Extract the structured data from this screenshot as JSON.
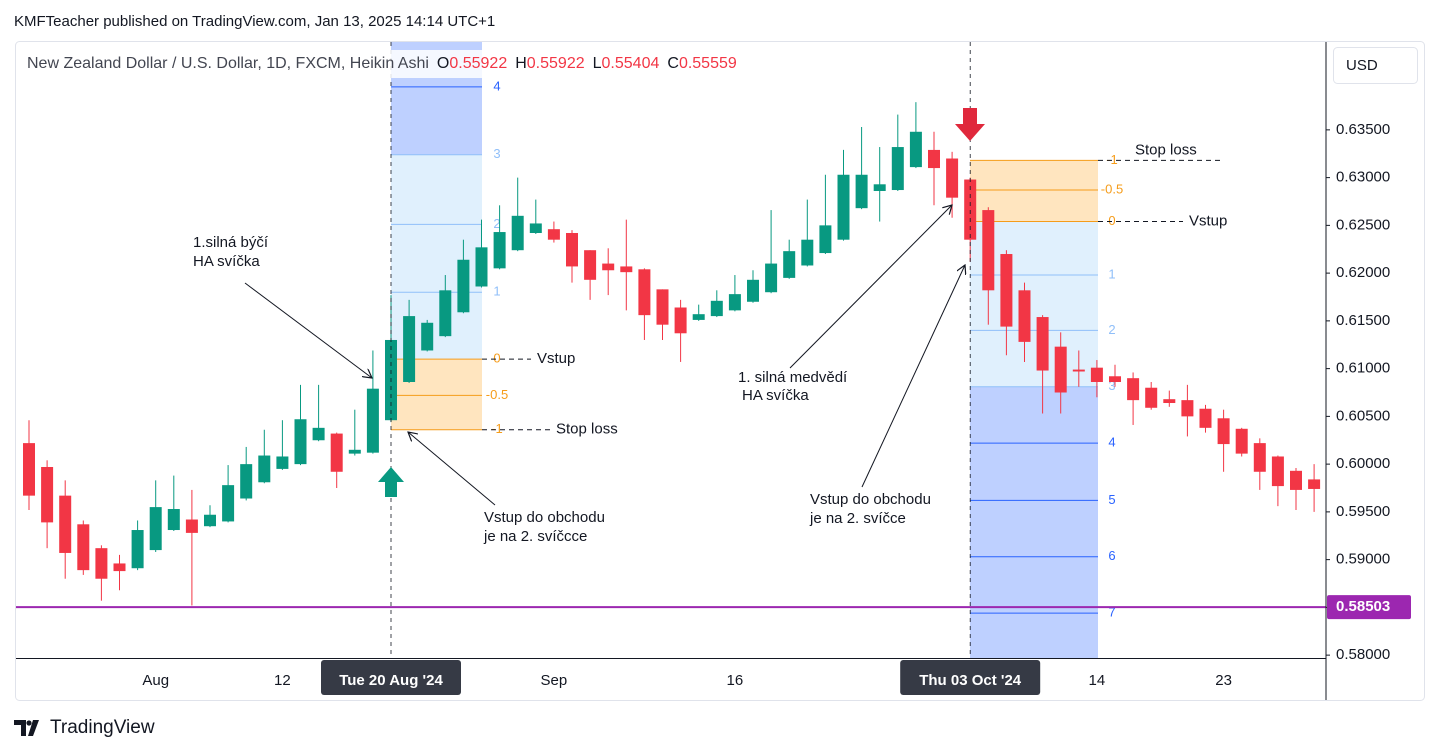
{
  "header": {
    "publisher": "KMFTeacher published on TradingView.com, Jan 13, 2025 14:14 UTC+1"
  },
  "chart_data": {
    "type": "candlestick",
    "title": "New Zealand Dollar / U.S. Dollar, 1D, FXCM, Heikin Ashi",
    "ohlc_legend": [
      {
        "label": "O",
        "value": 0.55922
      },
      {
        "label": "H",
        "value": 0.55922
      },
      {
        "label": "L",
        "value": 0.55404
      },
      {
        "label": "C",
        "value": 0.55559
      }
    ],
    "currency": "USD",
    "categories": [
      null,
      null,
      null,
      null,
      null,
      null,
      null,
      "Aug",
      null,
      null,
      null,
      null,
      null,
      null,
      "12",
      null,
      null,
      null,
      null,
      null,
      "Tue 20 Aug '24",
      null,
      null,
      null,
      null,
      null,
      null,
      null,
      null,
      "Sep",
      null,
      null,
      null,
      null,
      null,
      null,
      null,
      null,
      null,
      "16",
      null,
      null,
      null,
      null,
      null,
      null,
      null,
      null,
      null,
      null,
      null,
      null,
      "Thu 03 Oct '24",
      null,
      null,
      null,
      null,
      null,
      null,
      "14",
      null,
      null,
      null,
      null,
      null,
      null,
      "23",
      null,
      null,
      null,
      null,
      null
    ],
    "open": [
      0.6022,
      0.5997,
      0.5967,
      0.5937,
      0.5912,
      0.5896,
      0.5891,
      0.591,
      0.5931,
      0.5942,
      0.5935,
      0.594,
      0.5964,
      0.5981,
      0.5995,
      0.6,
      0.6025,
      0.6032,
      0.6011,
      0.6012,
      0.6046,
      0.6086,
      0.6119,
      0.6134,
      0.6159,
      0.6186,
      0.6205,
      0.6224,
      0.6242,
      0.6246,
      0.6242,
      0.6224,
      0.621,
      0.6207,
      0.6204,
      0.6183,
      0.6164,
      0.6151,
      0.6155,
      0.6161,
      0.617,
      0.618,
      0.6195,
      0.6208,
      0.6221,
      0.6235,
      0.6268,
      0.6286,
      0.6287,
      0.6311,
      0.6329,
      0.632,
      0.6298,
      0.6266,
      0.622,
      0.6182,
      0.6154,
      0.6123,
      0.6099,
      0.6101,
      0.6092,
      0.609,
      0.608,
      0.6068,
      0.6067,
      0.6058,
      0.6048,
      0.6037,
      0.6022,
      0.6008,
      0.5993,
      0.5984
    ],
    "high": [
      0.6046,
      0.6004,
      0.5983,
      0.5941,
      0.5915,
      0.5905,
      0.5941,
      0.5983,
      0.5988,
      0.5973,
      0.5957,
      0.5999,
      0.6018,
      0.6036,
      0.6046,
      0.6083,
      0.6083,
      0.6033,
      0.6057,
      0.6119,
      0.6177,
      0.6172,
      0.6151,
      0.6198,
      0.6235,
      0.6256,
      0.6271,
      0.63,
      0.6277,
      0.6254,
      0.6245,
      0.6224,
      0.6226,
      0.6256,
      0.6205,
      0.6183,
      0.6172,
      0.6167,
      0.6182,
      0.6198,
      0.6203,
      0.6266,
      0.6235,
      0.6277,
      0.6303,
      0.6329,
      0.6353,
      0.6332,
      0.6366,
      0.6379,
      0.6348,
      0.6327,
      0.63,
      0.6269,
      0.6224,
      0.619,
      0.6156,
      0.6138,
      0.6119,
      0.6109,
      0.6104,
      0.6096,
      0.6086,
      0.6077,
      0.6083,
      0.6062,
      0.6057,
      0.6038,
      0.6027,
      0.6009,
      0.5996,
      0.6
    ],
    "low": [
      0.5952,
      0.5912,
      0.588,
      0.5884,
      0.5857,
      0.5868,
      0.5889,
      0.5908,
      0.593,
      0.5852,
      0.5934,
      0.5939,
      0.5962,
      0.598,
      0.5994,
      0.5999,
      0.6024,
      0.5975,
      0.6009,
      0.6011,
      0.6044,
      0.6085,
      0.6118,
      0.6133,
      0.6158,
      0.6185,
      0.6204,
      0.6223,
      0.6241,
      0.6232,
      0.619,
      0.6172,
      0.6177,
      0.6161,
      0.613,
      0.613,
      0.6107,
      0.615,
      0.6154,
      0.616,
      0.6169,
      0.6179,
      0.6194,
      0.6207,
      0.622,
      0.6234,
      0.6267,
      0.6254,
      0.6286,
      0.631,
      0.6271,
      0.6258,
      0.6212,
      0.6146,
      0.6114,
      0.6107,
      0.6053,
      0.6053,
      0.6081,
      0.607,
      0.6081,
      0.6041,
      0.6057,
      0.606,
      0.6029,
      0.6033,
      0.5992,
      0.6008,
      0.5973,
      0.5956,
      0.5952,
      0.595
    ],
    "close": [
      0.5967,
      0.5939,
      0.5907,
      0.5889,
      0.588,
      0.5888,
      0.5931,
      0.5955,
      0.5953,
      0.5928,
      0.5947,
      0.5978,
      0.6,
      0.6009,
      0.6008,
      0.6047,
      0.6038,
      0.5992,
      0.6015,
      0.6079,
      0.613,
      0.6155,
      0.6148,
      0.6182,
      0.6214,
      0.6227,
      0.6243,
      0.626,
      0.6252,
      0.6235,
      0.6207,
      0.6193,
      0.6203,
      0.6201,
      0.6156,
      0.6146,
      0.6137,
      0.6157,
      0.6171,
      0.6178,
      0.6193,
      0.621,
      0.6223,
      0.6235,
      0.625,
      0.6303,
      0.6303,
      0.6293,
      0.6332,
      0.6348,
      0.631,
      0.6279,
      0.6235,
      0.6182,
      0.6144,
      0.6128,
      0.6098,
      0.6075,
      0.6097,
      0.6086,
      0.6086,
      0.6067,
      0.6059,
      0.6064,
      0.605,
      0.6038,
      0.6021,
      0.6011,
      0.5992,
      0.5977,
      0.5973,
      0.5974
    ],
    "up_color": "#089981",
    "down_color": "#f23645",
    "ylim": [
      0.5797,
      0.6442
    ],
    "yticks": [
      {
        "value": 0.58,
        "label": "0.58000"
      },
      {
        "value": 0.585,
        "label": "0.58500"
      },
      {
        "value": 0.59,
        "label": "0.59000"
      },
      {
        "value": 0.595,
        "label": "0.59500"
      },
      {
        "value": 0.6,
        "label": "0.60000"
      },
      {
        "value": 0.605,
        "label": "0.60500"
      },
      {
        "value": 0.61,
        "label": "0.61000"
      },
      {
        "value": 0.615,
        "label": "0.61500"
      },
      {
        "value": 0.62,
        "label": "0.62000"
      },
      {
        "value": 0.625,
        "label": "0.62500"
      },
      {
        "value": 0.63,
        "label": "0.63000"
      },
      {
        "value": 0.635,
        "label": "0.63500"
      }
    ],
    "grid": false,
    "price_line": {
      "value": 0.58503,
      "color": "#9c27b0"
    },
    "positions": [
      {
        "entry_label": "Vstup",
        "stop_label": "Stop loss",
        "levels": [
          {
            "level": 4,
            "price": 0.6395
          },
          {
            "level": 3,
            "price": 0.6324
          },
          {
            "level": 2,
            "price": 0.6251
          },
          {
            "level": 1,
            "price": 0.618
          },
          {
            "level": 0,
            "price": 0.611
          },
          {
            "level": -0.5,
            "price": 0.6072
          },
          {
            "level": -1,
            "price": 0.6036
          }
        ]
      },
      {
        "entry_label": "Vstup",
        "stop_label": "Stop loss",
        "levels": [
          {
            "level": -1,
            "price": 0.6318
          },
          {
            "level": -0.5,
            "price": 0.6287
          },
          {
            "level": 0,
            "price": 0.6254
          },
          {
            "level": 1,
            "price": 0.6198
          },
          {
            "level": 2,
            "price": 0.614
          },
          {
            "level": 3,
            "price": 0.6081
          },
          {
            "level": 4,
            "price": 0.6022
          },
          {
            "level": 5,
            "price": 0.5962
          },
          {
            "level": 6,
            "price": 0.5903
          },
          {
            "level": 7,
            "price": 0.5844
          }
        ]
      }
    ],
    "annotations": [
      {
        "lines": [
          "1.silná býčí",
          "HA svíčka"
        ]
      },
      {
        "lines": [
          "Vstup do obchodu",
          "je na 2. svíčcce"
        ]
      },
      {
        "lines": [
          "1. silná medvědí",
          "HA svíčka"
        ]
      },
      {
        "lines": [
          "Vstup do obchodu",
          "je na 2. svíčce"
        ]
      }
    ]
  },
  "footer": {
    "brand": "TradingView"
  }
}
